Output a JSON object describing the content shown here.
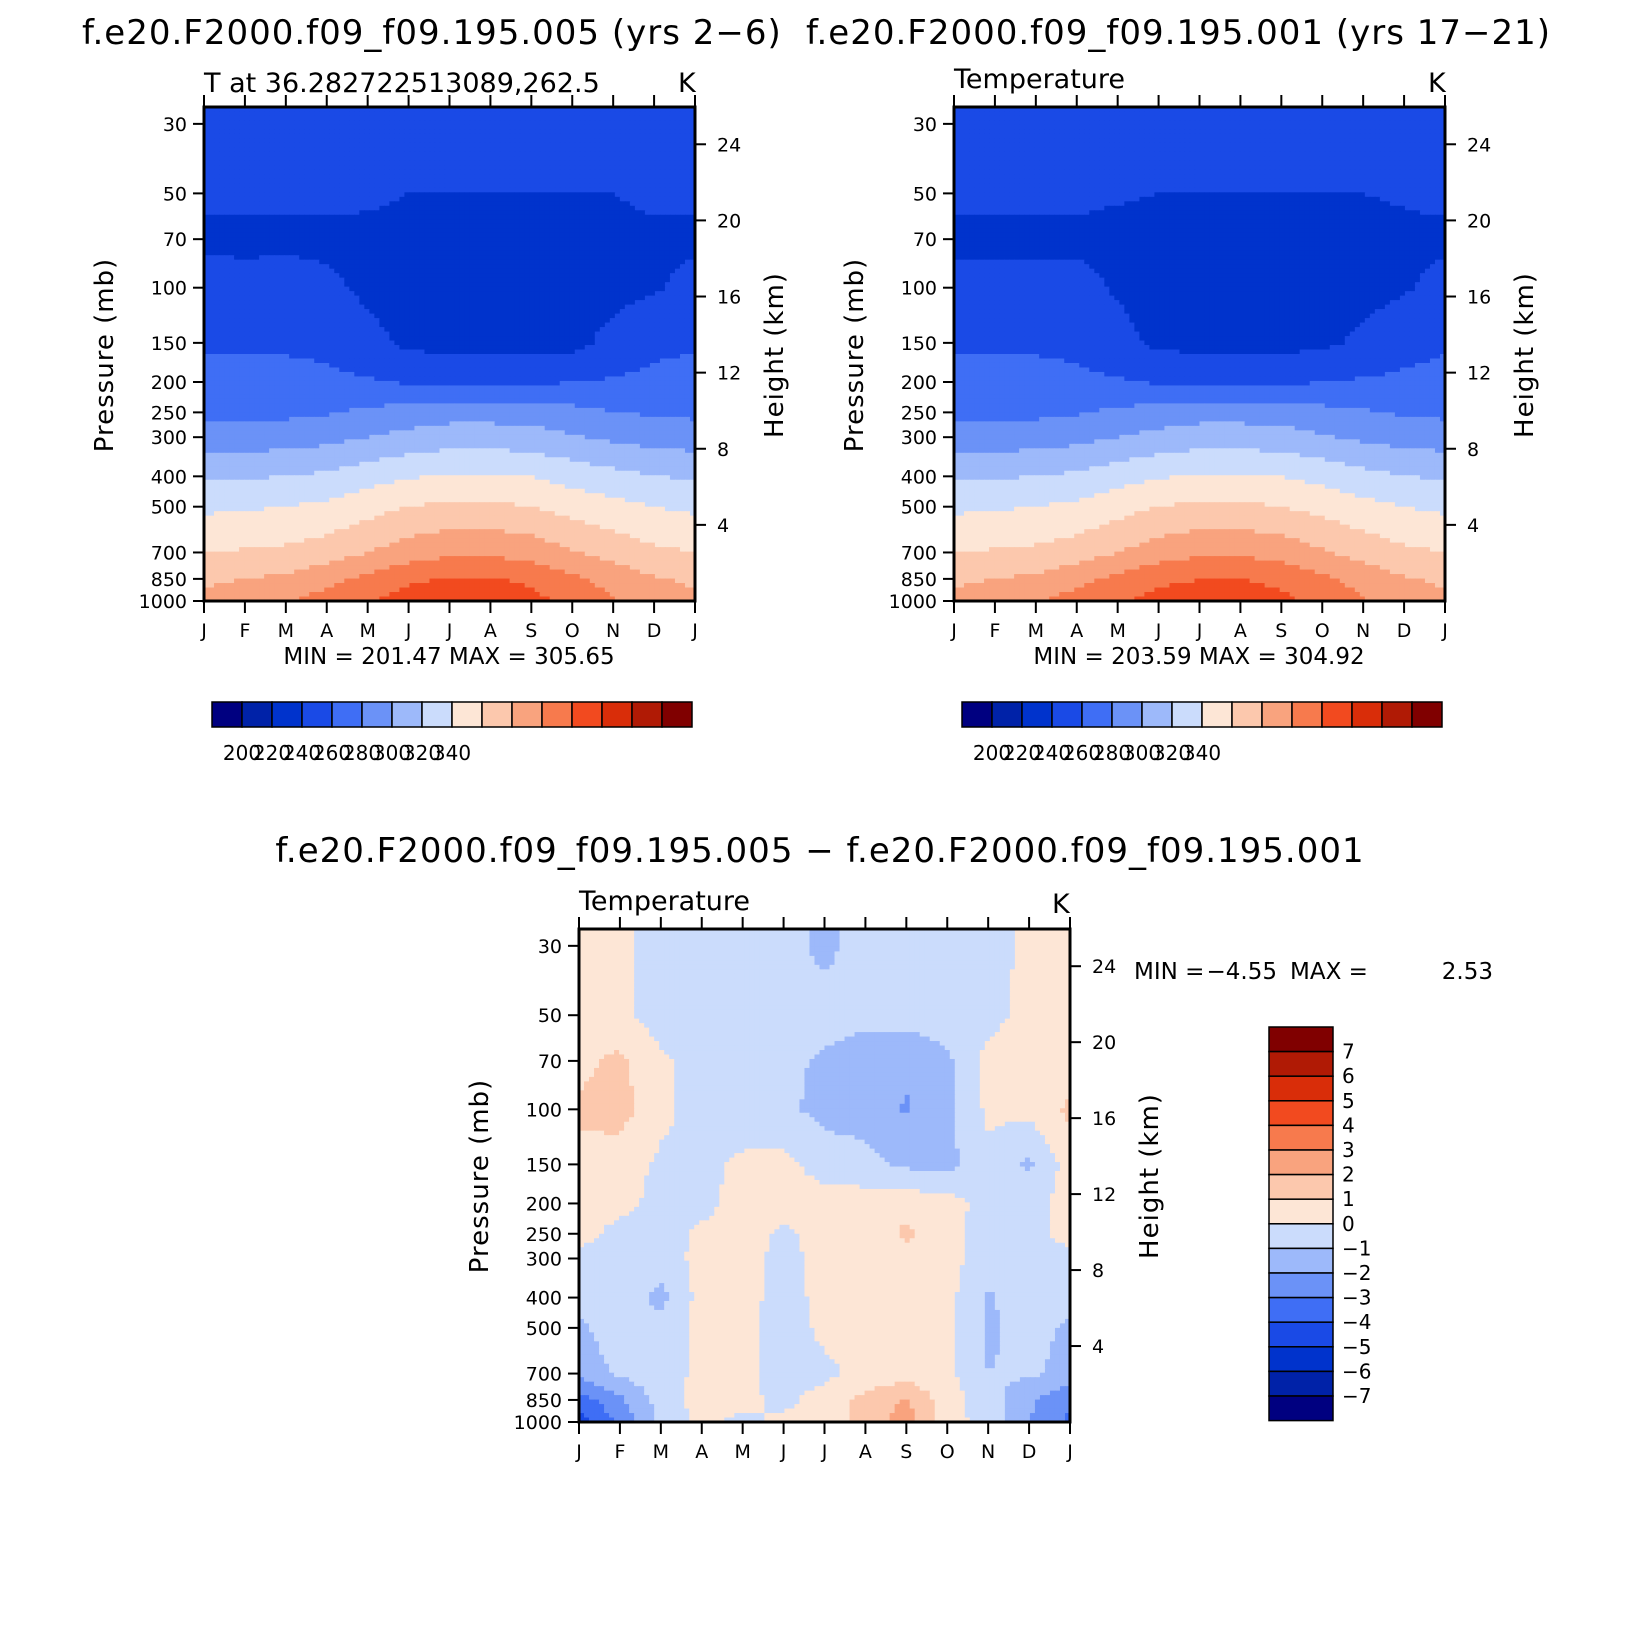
{
  "chart_data": [
    {
      "type": "heatmap",
      "title": "f.e20.F2000.f09_f09.195.005 (yrs 2−6)",
      "subtitle_left": "T at 36.282722513089,262.5",
      "subtitle_right": "K",
      "ylabel": "Pressure (mb)",
      "ylabel_right": "Height (km)",
      "x": [
        "J",
        "F",
        "M",
        "A",
        "M",
        "J",
        "J",
        "A",
        "S",
        "O",
        "N",
        "D",
        "J"
      ],
      "y_pressure": [
        30,
        50,
        70,
        100,
        150,
        200,
        250,
        300,
        400,
        500,
        700,
        850,
        1000
      ],
      "y_height_km": [
        24,
        20,
        16,
        12,
        8,
        4
      ],
      "stats": "MIN = 201.47 MAX = 305.65",
      "colorbar": {
        "labels": [
          "200",
          "220",
          "240",
          "260",
          "280",
          "300",
          "320",
          "340"
        ],
        "colors": [
          "#000080",
          "#0022a8",
          "#0033cc",
          "#1a4ae6",
          "#3f6ef5",
          "#6b92f7",
          "#9db9fa",
          "#cbdcfc",
          "#fde6d6",
          "#fcc8ad",
          "#f9a37e",
          "#f77a4d",
          "#f24a1f",
          "#d92d09",
          "#b01a05",
          "#800000"
        ]
      },
      "temperature_K": {
        "30": [
          215,
          215,
          215,
          215,
          215,
          215,
          217,
          217,
          215,
          215,
          215,
          215,
          215
        ],
        "50": [
          212,
          212,
          212,
          212,
          212,
          210,
          210,
          210,
          210,
          210,
          210,
          212,
          212
        ],
        "70": [
          208,
          208,
          208,
          208,
          207,
          206,
          206,
          206,
          206,
          206,
          207,
          208,
          208
        ],
        "100": [
          214,
          213,
          214,
          212,
          208,
          206,
          205,
          205,
          205,
          206,
          207,
          209,
          213
        ],
        "150": [
          219,
          219,
          219,
          218,
          213,
          208,
          207,
          207,
          207,
          207,
          213,
          218,
          219
        ],
        "200": [
          223,
          222,
          222,
          222,
          221,
          219,
          217,
          217,
          218,
          220,
          221,
          222,
          223
        ],
        "250": [
          228,
          228,
          228,
          229,
          232,
          234,
          236,
          236,
          235,
          233,
          230,
          229,
          228
        ],
        "300": [
          235,
          235,
          235,
          237,
          240,
          243,
          245,
          245,
          244,
          241,
          238,
          236,
          235
        ],
        "400": [
          249,
          249,
          250,
          252,
          256,
          259,
          261,
          261,
          260,
          256,
          253,
          250,
          249
        ],
        "500": [
          258,
          259,
          260,
          262,
          266,
          270,
          272,
          272,
          270,
          266,
          263,
          260,
          258
        ],
        "700": [
          270,
          271,
          272,
          275,
          280,
          285,
          288,
          288,
          286,
          281,
          276,
          272,
          270
        ],
        "850": [
          278,
          280,
          282,
          287,
          292,
          298,
          301,
          301,
          298,
          292,
          286,
          281,
          278
        ],
        "1000": [
          283,
          286,
          289,
          294,
          299,
          305,
          305,
          305,
          303,
          297,
          291,
          286,
          283
        ]
      }
    },
    {
      "type": "heatmap",
      "title": "f.e20.F2000.f09_f09.195.001 (yrs 17−21)",
      "subtitle_left": "Temperature",
      "subtitle_right": "K",
      "ylabel": "Pressure (mb)",
      "ylabel_right": "Height (km)",
      "x": [
        "J",
        "F",
        "M",
        "A",
        "M",
        "J",
        "J",
        "A",
        "S",
        "O",
        "N",
        "D",
        "J"
      ],
      "y_pressure": [
        30,
        50,
        70,
        100,
        150,
        200,
        250,
        300,
        400,
        500,
        700,
        850,
        1000
      ],
      "y_height_km": [
        24,
        20,
        16,
        12,
        8,
        4
      ],
      "stats": "MIN = 203.59 MAX = 304.92",
      "colorbar": {
        "labels": [
          "200",
          "220",
          "240",
          "260",
          "280",
          "300",
          "320",
          "340"
        ],
        "colors": [
          "#000080",
          "#0022a8",
          "#0033cc",
          "#1a4ae6",
          "#3f6ef5",
          "#6b92f7",
          "#9db9fa",
          "#cbdcfc",
          "#fde6d6",
          "#fcc8ad",
          "#f9a37e",
          "#f77a4d",
          "#f24a1f",
          "#d92d09",
          "#b01a05",
          "#800000"
        ]
      },
      "temperature_K": {
        "30": [
          215,
          215,
          215,
          215,
          215,
          216,
          217,
          217,
          216,
          215,
          215,
          215,
          215
        ],
        "50": [
          212,
          212,
          212,
          212,
          211,
          210,
          210,
          210,
          210,
          210,
          210,
          211,
          212
        ],
        "70": [
          208,
          208,
          208,
          208,
          207,
          206,
          206,
          206,
          206,
          206,
          207,
          208,
          208
        ],
        "100": [
          213,
          213,
          213,
          213,
          209,
          206,
          205,
          205,
          205,
          206,
          207,
          209,
          213
        ],
        "150": [
          219,
          219,
          219,
          218,
          213,
          208,
          207,
          207,
          207,
          208,
          212,
          216,
          219
        ],
        "200": [
          223,
          222,
          222,
          222,
          221,
          219,
          218,
          218,
          218,
          220,
          221,
          222,
          223
        ],
        "250": [
          228,
          228,
          228,
          229,
          232,
          234,
          236,
          236,
          235,
          233,
          231,
          229,
          228
        ],
        "300": [
          235,
          235,
          235,
          237,
          240,
          243,
          245,
          245,
          244,
          241,
          238,
          236,
          235
        ],
        "400": [
          249,
          249,
          250,
          252,
          256,
          259,
          261,
          261,
          260,
          257,
          253,
          250,
          249
        ],
        "500": [
          258,
          259,
          260,
          262,
          266,
          270,
          272,
          272,
          270,
          267,
          263,
          260,
          258
        ],
        "700": [
          270,
          271,
          272,
          275,
          280,
          285,
          288,
          288,
          286,
          281,
          276,
          272,
          270
        ],
        "850": [
          278,
          280,
          282,
          287,
          292,
          298,
          300,
          300,
          298,
          292,
          286,
          281,
          278
        ],
        "1000": [
          283,
          286,
          289,
          294,
          299,
          303,
          304,
          304,
          302,
          297,
          291,
          286,
          283
        ]
      }
    },
    {
      "type": "heatmap",
      "title": "f.e20.F2000.f09_f09.195.005 − f.e20.F2000.f09_f09.195.001",
      "subtitle_left": "Temperature",
      "subtitle_right": "K",
      "ylabel": "Pressure (mb)",
      "ylabel_right": "Height (km)",
      "x": [
        "J",
        "F",
        "M",
        "A",
        "M",
        "J",
        "J",
        "A",
        "S",
        "O",
        "N",
        "D",
        "J"
      ],
      "y_pressure": [
        30,
        50,
        70,
        100,
        150,
        200,
        250,
        300,
        400,
        500,
        700,
        850,
        1000
      ],
      "y_height_km": [
        24,
        20,
        16,
        12,
        8,
        4
      ],
      "stats": {
        "min_label": "MIN =",
        "min": "−4.55",
        "max_label": "MAX =",
        "max": "2.53"
      },
      "colorbar": {
        "labels": [
          "7",
          "6",
          "5",
          "4",
          "3",
          "2",
          "1",
          "0",
          "−1",
          "−2",
          "−3",
          "−4",
          "−5",
          "−6",
          "−7"
        ],
        "colors": [
          "#800000",
          "#b01a05",
          "#d92d09",
          "#f24a1f",
          "#f77a4d",
          "#f9a37e",
          "#fcc8ad",
          "#fde6d6",
          "#cbdcfc",
          "#9db9fa",
          "#6b92f7",
          "#3f6ef5",
          "#1a4ae6",
          "#0033cc",
          "#0022a8",
          "#000080"
        ]
      },
      "difference_K": {
        "30": [
          0.4,
          0.3,
          -0.5,
          -0.6,
          -0.5,
          -0.6,
          -1.3,
          -0.5,
          -0.5,
          -0.6,
          -0.5,
          0.3,
          0.5
        ],
        "50": [
          0.4,
          0.3,
          -0.5,
          -0.5,
          -0.3,
          -0.5,
          -0.5,
          -0.7,
          -0.6,
          -0.5,
          -0.3,
          0.3,
          0.5
        ],
        "70": [
          0.8,
          1.2,
          0.2,
          -0.5,
          -0.3,
          -0.7,
          -1.2,
          -1.6,
          -1.8,
          -1.2,
          0.3,
          0.5,
          0.4
        ],
        "100": [
          1.1,
          1.4,
          0.3,
          -0.5,
          -0.6,
          -0.8,
          -1.3,
          -1.4,
          -2.1,
          -1.2,
          0.2,
          0.3,
          1.2
        ],
        "150": [
          0.8,
          0.5,
          -0.2,
          -0.3,
          0.2,
          0.3,
          -0.5,
          -0.7,
          -1.2,
          -1.3,
          -0.3,
          -1.2,
          0.5
        ],
        "200": [
          0.5,
          0.3,
          -0.3,
          -0.3,
          0.4,
          0.5,
          0.5,
          0.5,
          0.6,
          0.5,
          -0.5,
          -0.4,
          0.4
        ],
        "250": [
          0.3,
          -0.3,
          -0.4,
          0.2,
          0.4,
          -0.2,
          0.4,
          0.4,
          1.2,
          0.5,
          -0.6,
          -0.3,
          0.3
        ],
        "300": [
          -0.3,
          -0.3,
          -0.5,
          0.3,
          0.4,
          -0.3,
          0.3,
          0.3,
          0.6,
          0.5,
          -0.7,
          -0.3,
          -0.3
        ],
        "400": [
          -0.6,
          -0.4,
          -1.3,
          0.4,
          0.4,
          -0.4,
          0.3,
          0.4,
          0.4,
          0.3,
          -1.1,
          -0.5,
          -0.7
        ],
        "500": [
          -1.2,
          -0.4,
          -0.7,
          0.4,
          0.4,
          -0.7,
          0.3,
          0.4,
          0.4,
          0.3,
          -1.2,
          -0.6,
          -1.2
        ],
        "700": [
          -1.7,
          -0.8,
          -0.4,
          0.2,
          0.4,
          -0.6,
          -0.3,
          0.4,
          0.5,
          0.3,
          -1.0,
          -0.8,
          -1.4
        ],
        "850": [
          -3.5,
          -2.2,
          -0.6,
          0.5,
          0.3,
          -0.3,
          0.5,
          1.3,
          2.1,
          0.4,
          -0.5,
          -1.8,
          -2.8
        ],
        "1000": [
          -4.5,
          -2.8,
          -0.8,
          0.3,
          -0.3,
          0.3,
          0.2,
          1.5,
          2.5,
          0.4,
          -0.4,
          -2.0,
          -3.2
        ]
      }
    }
  ]
}
